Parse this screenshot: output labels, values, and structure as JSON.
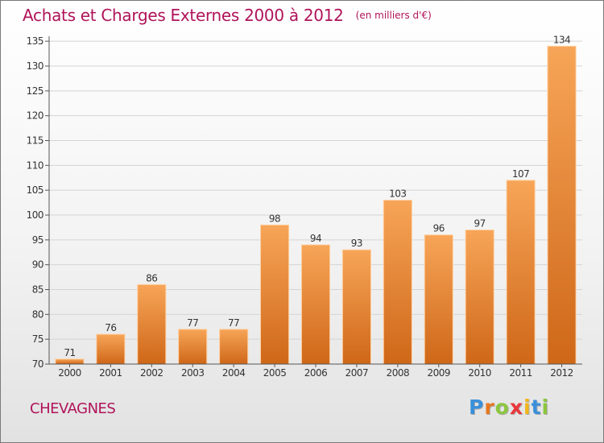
{
  "header": {
    "title": "Achats et Charges Externes 2000 à 2012",
    "unit": "(en milliers d'€)"
  },
  "commune": "CHEVAGNES",
  "logo": {
    "text": "Proxiti",
    "letter_colors": [
      "#3b8fd9",
      "#e8771e",
      "#8cc63f",
      "#e8363c",
      "#f2b61b",
      "#3b8fd9",
      "#8cc63f"
    ]
  },
  "chart_data": {
    "type": "bar",
    "title": "Achats et Charges Externes 2000 à 2012",
    "subtitle": "(en milliers d'€)",
    "xlabel": "",
    "ylabel": "",
    "categories": [
      "2000",
      "2001",
      "2002",
      "2003",
      "2004",
      "2005",
      "2006",
      "2007",
      "2008",
      "2009",
      "2010",
      "2011",
      "2012"
    ],
    "values": [
      71,
      76,
      86,
      77,
      77,
      98,
      94,
      93,
      103,
      96,
      97,
      107,
      134
    ],
    "data_labels": [
      "71",
      "76",
      "86",
      "77",
      "77",
      "98",
      "94",
      "93",
      "103",
      "96",
      "97",
      "107",
      "134"
    ],
    "ylim": [
      70,
      136
    ],
    "yticks": [
      70,
      75,
      80,
      85,
      90,
      95,
      100,
      105,
      110,
      115,
      120,
      125,
      130,
      135
    ],
    "grid": true,
    "legend": "none",
    "colors": {
      "bar_top": "#f7a558",
      "bar_bottom": "#cf6718",
      "bar_edge": "#ffd1a3",
      "grid": "#d4d4d4",
      "axis": "#555555",
      "text": "#333333"
    }
  }
}
